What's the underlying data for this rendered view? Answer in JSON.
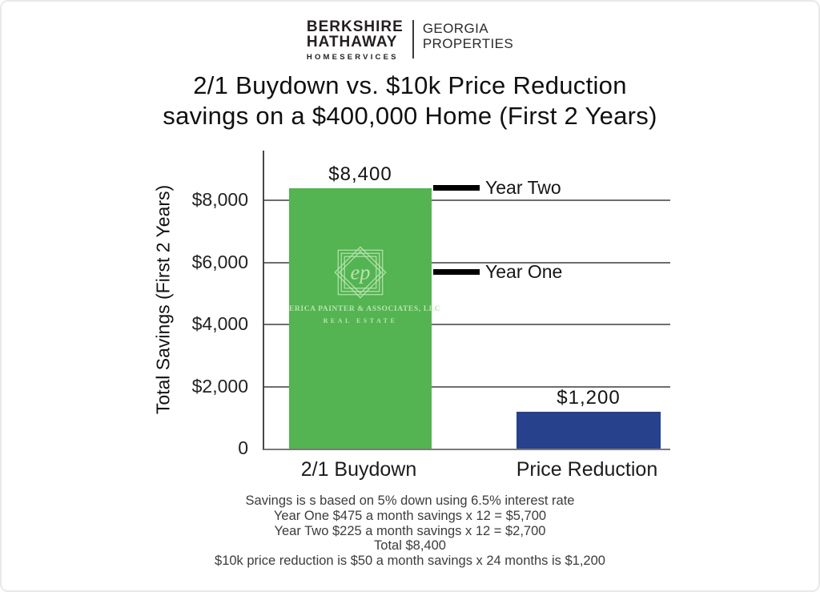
{
  "brand": {
    "name_line1": "BERKSHIRE",
    "name_line2": "HATHAWAY",
    "name_line3": "HOMESERVICES",
    "region_line1": "GEORGIA",
    "region_line2": "PROPERTIES"
  },
  "title": {
    "line1": "2/1 Buydown vs. $10k Price Reduction",
    "line2": "savings on a $400,000 Home (First 2 Years)"
  },
  "chart_data": {
    "type": "bar",
    "title": "2/1 Buydown vs. $10k Price Reduction savings on a $400,000 Home (First 2 Years)",
    "categories": [
      "2/1 Buydown",
      "Price Reduction"
    ],
    "values": [
      8400,
      1200
    ],
    "value_labels": [
      "$8,400",
      "$1,200"
    ],
    "bar_colors": [
      "#53b451",
      "#27418c"
    ],
    "xlabel": "",
    "ylabel": "Total Savings (First 2 Years)",
    "ylim": [
      0,
      9600
    ],
    "grid": true,
    "gridline_values": [
      2000,
      4000,
      6000,
      8000
    ],
    "yticks": [
      {
        "value": 0,
        "label": "0"
      },
      {
        "value": 2000,
        "label": "$2,000"
      },
      {
        "value": 4000,
        "label": "$4,000"
      },
      {
        "value": 6000,
        "label": "$6,000"
      },
      {
        "value": 8000,
        "label": "$8,000"
      }
    ],
    "annotations": [
      {
        "label": "Year Two",
        "value": 8400
      },
      {
        "label": "Year One",
        "value": 5700
      }
    ]
  },
  "bar_logo": {
    "monogram": "ep",
    "line1": "ERICA PAINTER & ASSOCIATES, LLC",
    "line2": "REAL ESTATE"
  },
  "footer": {
    "lines": [
      "Savings is s based on 5% down using 6.5% interest rate",
      "Year One $475 a month savings x 12 = $5,700",
      "Year Two $225 a month savings x 12 = $2,700",
      "Total $8,400",
      "$10k price reduction is $50 a month savings x 24 months is $1,200"
    ]
  },
  "colors": {
    "buydown_bar": "#53b451",
    "price_reduction_bar": "#27418c",
    "emblem": "#b9e2b0",
    "marker_line": "#000000"
  }
}
